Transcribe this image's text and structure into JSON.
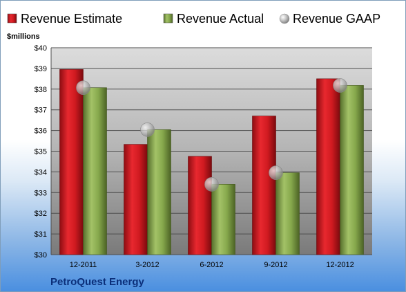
{
  "chart_data": {
    "type": "bar",
    "ylabel": "$millions",
    "ylim": [
      30,
      40
    ],
    "ytick_values": [
      30,
      31,
      32,
      33,
      34,
      35,
      36,
      37,
      38,
      39,
      40
    ],
    "ytick_labels": [
      "$30",
      "$31",
      "$32",
      "$33",
      "$34",
      "$35",
      "$36",
      "$37",
      "$38",
      "$39",
      "$40"
    ],
    "categories": [
      "12-2011",
      "3-2012",
      "6-2012",
      "9-2012",
      "12-2012"
    ],
    "series": [
      {
        "name": "Revenue Estimate",
        "kind": "bar",
        "color": "#c8141c",
        "values": [
          38.95,
          35.33,
          34.75,
          36.7,
          38.5
        ]
      },
      {
        "name": "Revenue Actual",
        "kind": "bar",
        "color": "#7ea043",
        "values": [
          38.07,
          36.04,
          33.4,
          33.96,
          38.18
        ]
      },
      {
        "name": "Revenue GAAP",
        "kind": "marker",
        "color": "#b8b8b8",
        "values": [
          38.07,
          36.04,
          33.4,
          33.96,
          38.18
        ]
      }
    ],
    "legend_position": "top",
    "grid": true
  },
  "company": "PetroQuest Energy",
  "colors": {
    "plot_bg_top": "#d9d9d9",
    "plot_bg_bottom": "#7d7d7d",
    "gridline": "#555555",
    "company_text": "#0b2f7a"
  }
}
